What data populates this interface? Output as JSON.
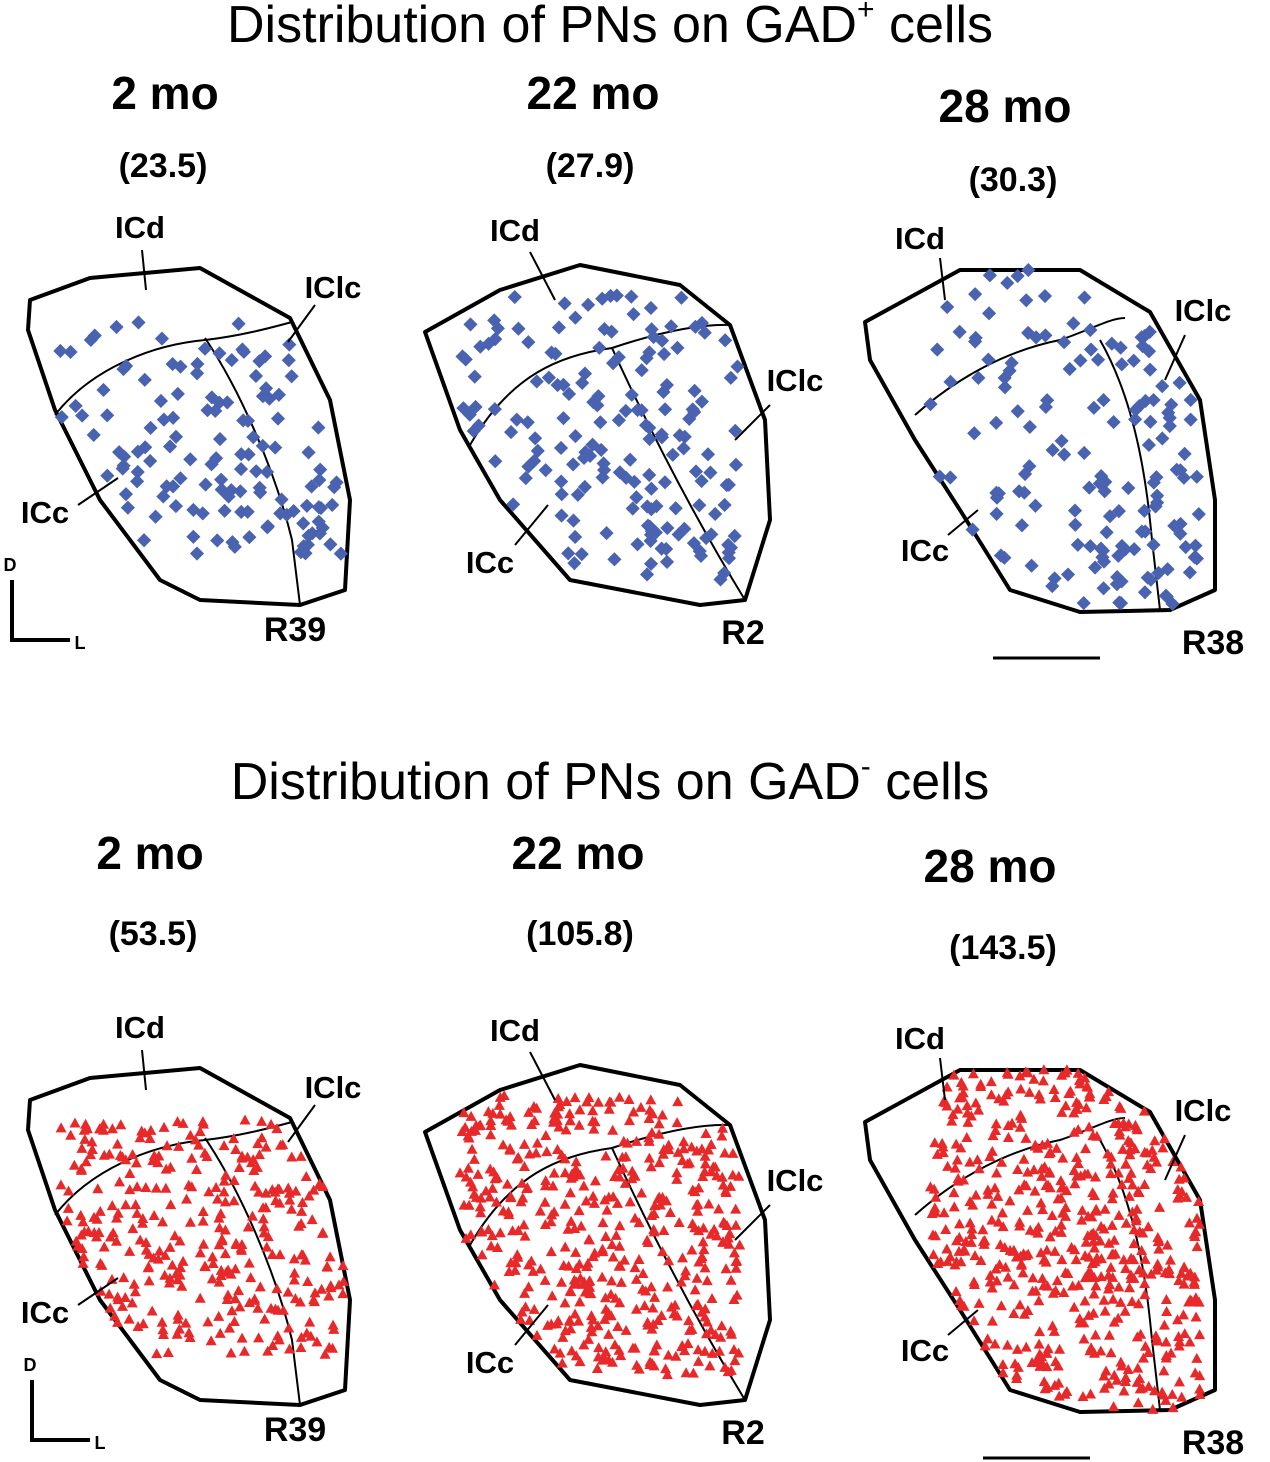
{
  "sections": [
    {
      "title": {
        "text": "Distribution of PNs on GAD",
        "sup": "+",
        "end": " cells"
      },
      "panels": [
        {
          "age": "2 mo",
          "count": "(23.5)",
          "regions": {
            "dorsal": "ICd",
            "lateral": "IClc",
            "central": "ICc"
          },
          "section": "R39"
        },
        {
          "age": "22 mo",
          "count": "(27.9)",
          "regions": {
            "dorsal": "ICd",
            "lateral": "IClc",
            "central": "ICc"
          },
          "section": "R2"
        },
        {
          "age": "28 mo",
          "count": "(30.3)",
          "regions": {
            "dorsal": "ICd",
            "lateral": "IClc",
            "central": "ICc"
          },
          "section": "R38"
        }
      ]
    },
    {
      "title": {
        "text": "Distribution of PNs on GAD",
        "sup": "-",
        "end": " cells"
      },
      "panels": [
        {
          "age": "2 mo",
          "count": "(53.5)",
          "regions": {
            "dorsal": "ICd",
            "lateral": "IClc",
            "central": "ICc"
          },
          "section": "R39"
        },
        {
          "age": "22 mo",
          "count": "(105.8)",
          "regions": {
            "dorsal": "ICd",
            "lateral": "IClc",
            "central": "ICc"
          },
          "section": "R2"
        },
        {
          "age": "28 mo",
          "count": "(143.5)",
          "regions": {
            "dorsal": "ICd",
            "lateral": "IClc",
            "central": "ICc"
          },
          "section": "R38"
        }
      ]
    }
  ],
  "orientation": {
    "dorsal": "D",
    "lateral": "L"
  }
}
